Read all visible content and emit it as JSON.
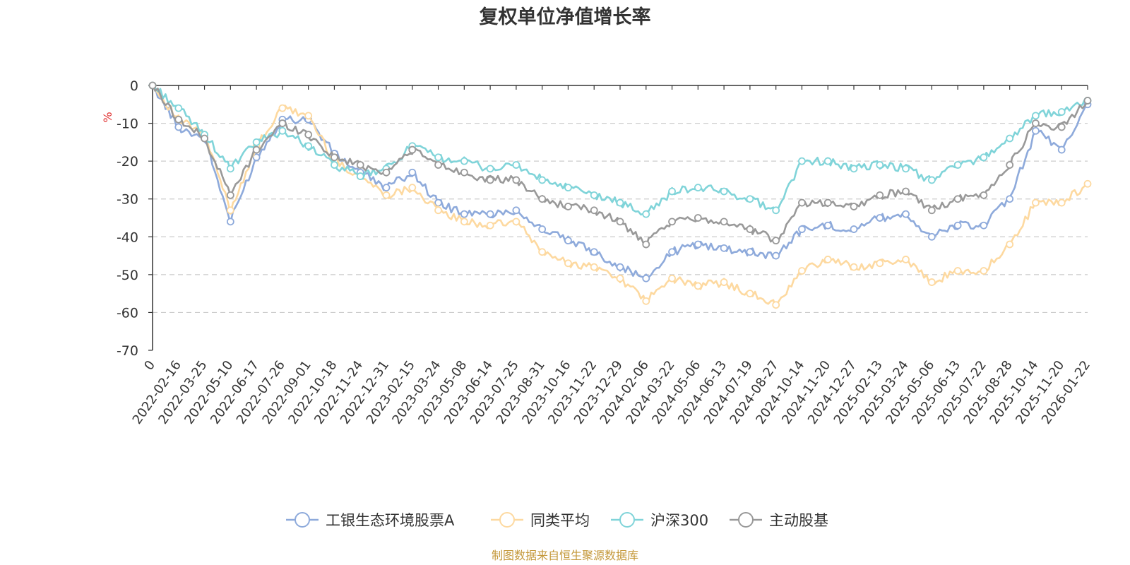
{
  "chart_data": {
    "type": "line",
    "title": "复权单位净值增长率",
    "ylabel": "%",
    "xlabel": "",
    "ylim": [
      -70,
      0
    ],
    "yticks": [
      0,
      -10,
      -20,
      -30,
      -40,
      -50,
      -60,
      -70
    ],
    "grid": "horizontal-dashed",
    "legend_position": "bottom-center",
    "categories": [
      "0",
      "2022-02-16",
      "2022-03-25",
      "2022-05-10",
      "2022-06-17",
      "2022-07-26",
      "2022-09-01",
      "2022-10-18",
      "2022-11-24",
      "2022-12-31",
      "2023-02-15",
      "2023-03-24",
      "2023-05-08",
      "2023-06-14",
      "2023-07-25",
      "2023-08-31",
      "2023-10-16",
      "2023-11-22",
      "2023-12-29",
      "2024-02-06",
      "2024-03-22",
      "2024-05-06",
      "2024-06-13",
      "2024-07-19",
      "2024-08-27",
      "2024-10-14",
      "2024-11-20",
      "2024-12-27",
      "2025-02-13",
      "2025-03-24",
      "2025-05-06",
      "2025-06-13",
      "2025-07-22",
      "2025-08-28",
      "2025-10-14",
      "2025-11-20",
      "2026-01-22"
    ],
    "series": [
      {
        "name": "工银生态环境股票A",
        "color": "#8eaadb",
        "values": [
          0,
          -11,
          -14,
          -36,
          -19,
          -9,
          -9,
          -18,
          -23,
          -27,
          -23,
          -31,
          -34,
          -34,
          -33,
          -38,
          -41,
          -44,
          -48,
          -51,
          -44,
          -42,
          -43,
          -44,
          -45,
          -38,
          -37,
          -38,
          -35,
          -34,
          -40,
          -37,
          -37,
          -30,
          -12,
          -17,
          -5
        ]
      },
      {
        "name": "同类平均",
        "color": "#fdd9a0",
        "values": [
          0,
          -9,
          -13,
          -33,
          -16,
          -6,
          -8,
          -20,
          -24,
          -29,
          -27,
          -33,
          -36,
          -37,
          -36,
          -44,
          -47,
          -48,
          -51,
          -57,
          -51,
          -53,
          -52,
          -55,
          -58,
          -49,
          -46,
          -48,
          -47,
          -46,
          -52,
          -49,
          -49,
          -42,
          -31,
          -31,
          -26
        ]
      },
      {
        "name": "沪深300",
        "color": "#80d4d9",
        "values": [
          0,
          -6,
          -13,
          -22,
          -15,
          -12,
          -16,
          -21,
          -24,
          -22,
          -16,
          -19,
          -20,
          -22,
          -21,
          -25,
          -27,
          -29,
          -31,
          -34,
          -28,
          -27,
          -28,
          -30,
          -33,
          -20,
          -20,
          -22,
          -21,
          -22,
          -25,
          -21,
          -19,
          -14,
          -8,
          -7,
          -4
        ]
      },
      {
        "name": "主动股基",
        "color": "#999999",
        "values": [
          0,
          -9,
          -14,
          -29,
          -17,
          -10,
          -13,
          -19,
          -21,
          -23,
          -17,
          -21,
          -23,
          -25,
          -25,
          -30,
          -32,
          -33,
          -36,
          -42,
          -36,
          -35,
          -36,
          -38,
          -41,
          -31,
          -31,
          -32,
          -29,
          -28,
          -33,
          -30,
          -29,
          -21,
          -10,
          -11,
          -4
        ]
      }
    ]
  },
  "footer": {
    "source_text": "制图数据来自恒生聚源数据库",
    "source_color": "#c4983a"
  }
}
